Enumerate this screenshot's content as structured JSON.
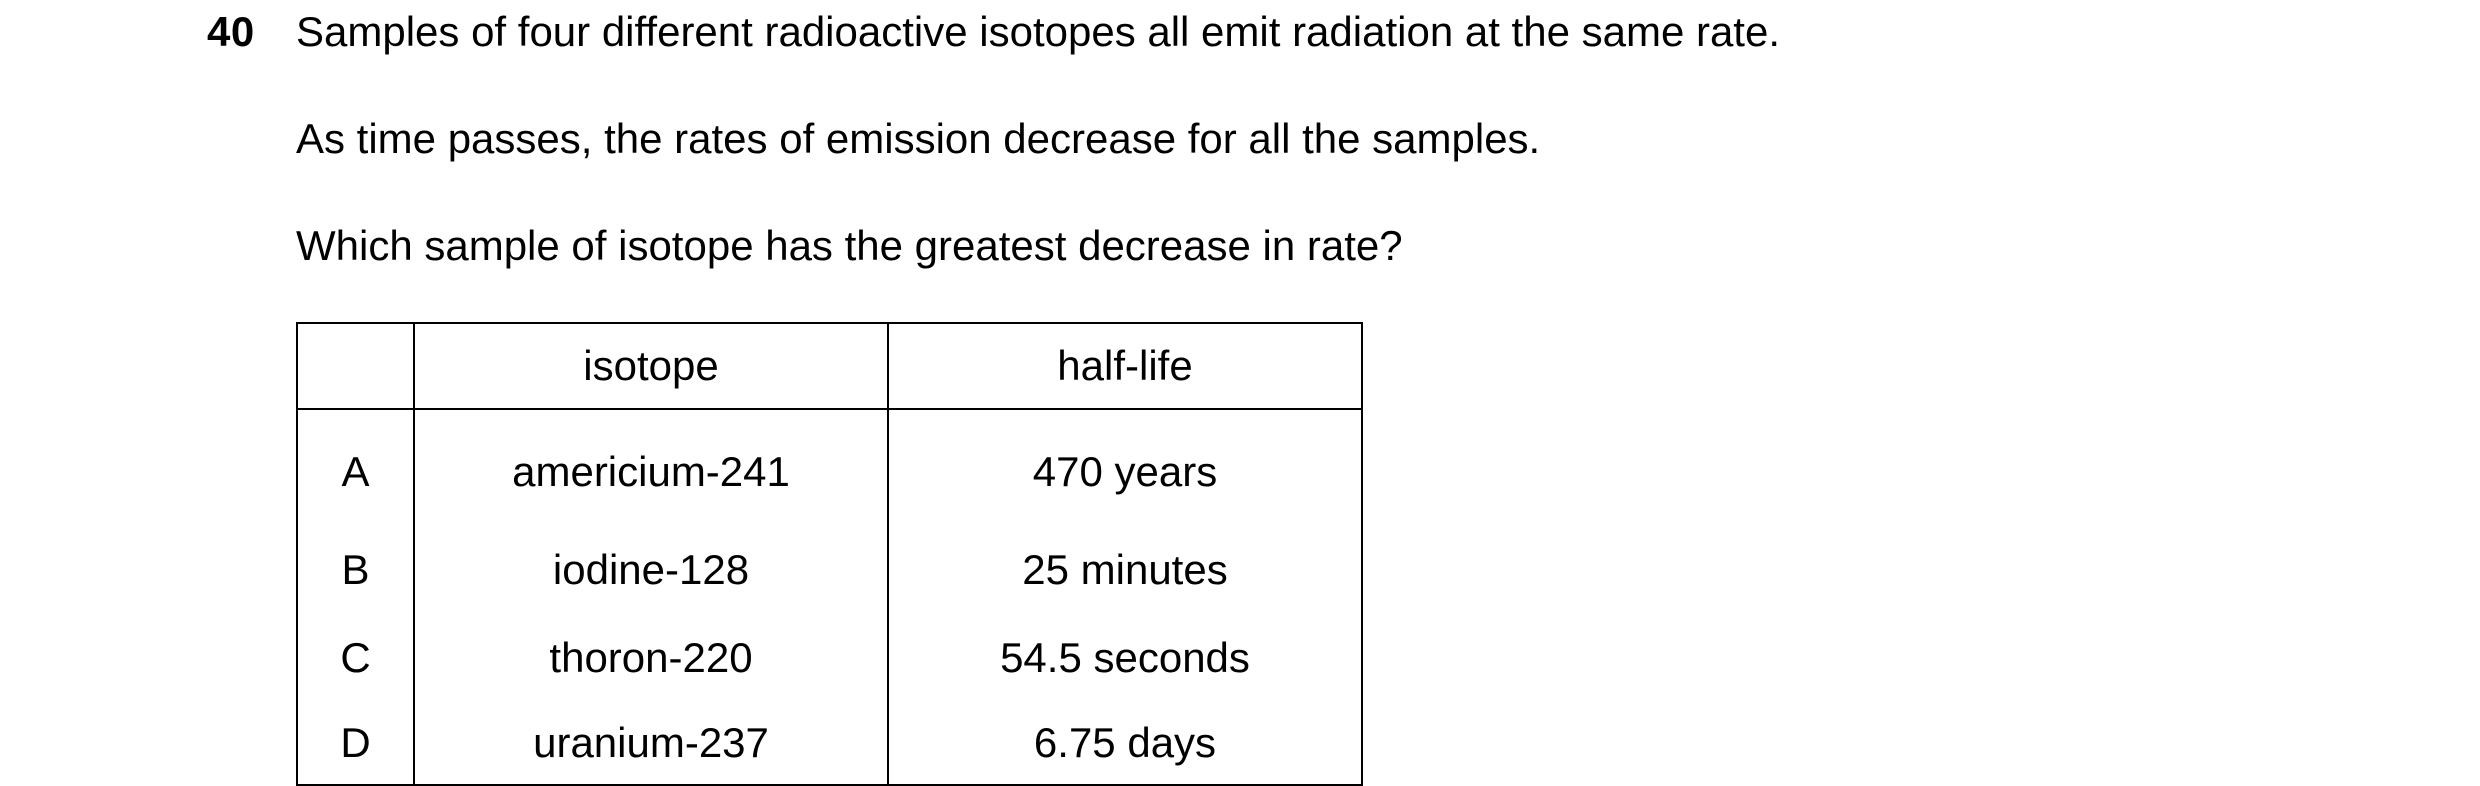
{
  "question": {
    "number": "40",
    "lines": [
      "Samples of four different radioactive isotopes all emit radiation at the same rate.",
      "As time passes, the rates of emission decrease for all the samples.",
      "Which sample of isotope has the greatest decrease in rate?"
    ]
  },
  "table": {
    "headers": [
      "",
      "isotope",
      "half-life"
    ],
    "rows": [
      {
        "option": "A",
        "isotope": "americium-241",
        "half_life": "470 years"
      },
      {
        "option": "B",
        "isotope": "iodine-128",
        "half_life": "25 minutes"
      },
      {
        "option": "C",
        "isotope": "thoron-220",
        "half_life": "54.5 seconds"
      },
      {
        "option": "D",
        "isotope": "uranium-237",
        "half_life": "6.75 days"
      }
    ]
  }
}
